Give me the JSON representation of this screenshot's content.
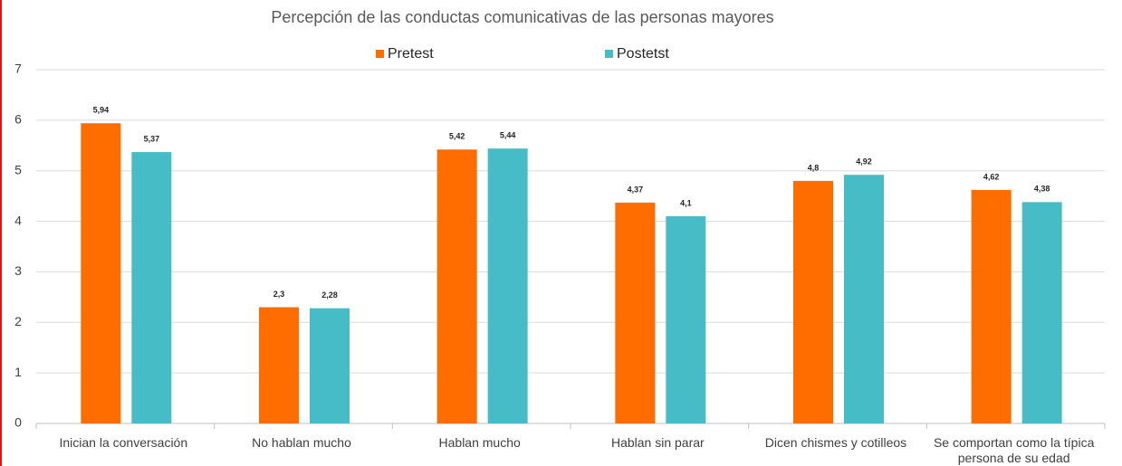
{
  "chart_data": {
    "type": "bar",
    "title": "Percepción de las conductas comunicativas de las personas mayores",
    "categories": [
      "Inician la conversación",
      "No hablan mucho",
      "Hablan mucho",
      "Hablan sin parar",
      "Dicen chismes y cotilleos",
      "Se comportan como la típica persona de su edad"
    ],
    "series": [
      {
        "name": "Pretest",
        "color": "#ff6d00",
        "values": [
          5.94,
          2.3,
          5.42,
          4.37,
          4.8,
          4.62
        ],
        "value_labels": [
          "5,94",
          "2,3",
          "5,42",
          "4,37",
          "4,8",
          "4,62"
        ]
      },
      {
        "name": "Postetst",
        "color": "#46bdc6",
        "values": [
          5.37,
          2.28,
          5.44,
          4.1,
          4.92,
          4.38
        ],
        "value_labels": [
          "5,37",
          "2,28",
          "5,44",
          "4,1",
          "4,92",
          "4,38"
        ]
      }
    ],
    "ylim": [
      0,
      7
    ],
    "yticks": [
      0,
      1,
      2,
      3,
      4,
      5,
      6,
      7
    ],
    "grid": true,
    "legend": "top"
  }
}
